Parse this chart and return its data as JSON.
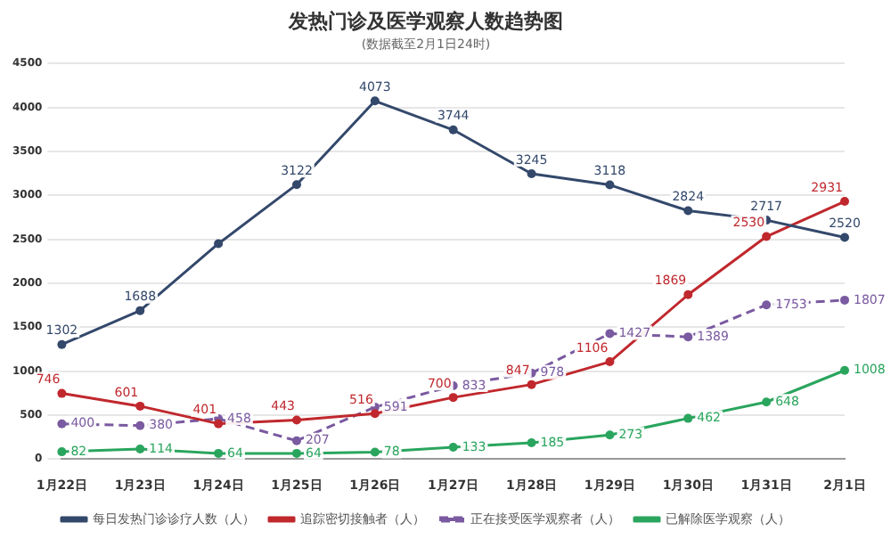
{
  "chart_data": {
    "type": "line",
    "title": "发热门诊及医学观察人数趋势图",
    "subtitle": "(数据截至2月1日24时)",
    "categories": [
      "1月22日",
      "1月23日",
      "1月24日",
      "1月25日",
      "1月26日",
      "1月27日",
      "1月28日",
      "1月29日",
      "1月30日",
      "1月31日",
      "2月1日"
    ],
    "series": [
      {
        "name": "每日发热门诊诊疗人数（人）",
        "color": "#33486b",
        "values": [
          1302,
          1688,
          2450,
          3122,
          4073,
          3744,
          3245,
          3118,
          2824,
          2717,
          2520
        ],
        "value_labels": [
          "1302",
          "1688",
          null,
          "3122",
          "4073",
          "3744",
          "3245",
          "3118",
          "2824",
          "2717",
          "2520"
        ]
      },
      {
        "name": "追踪密切接触者（人）",
        "color": "#c0282d",
        "values": [
          746,
          601,
          401,
          443,
          516,
          700,
          847,
          1106,
          1869,
          2530,
          2931
        ],
        "value_labels": [
          "746",
          "601",
          "401",
          "443",
          "516",
          "700",
          "847",
          "1106",
          "1869",
          "2530",
          "2931"
        ]
      },
      {
        "name": "正在接受医学观察者（人）",
        "color": "#7a5aa0",
        "line_style": "dashed",
        "values": [
          400,
          380,
          458,
          207,
          591,
          833,
          978,
          1427,
          1389,
          1753,
          1807
        ],
        "value_labels": [
          "400",
          "380",
          "458",
          "207",
          "591",
          "833",
          "978",
          "1427",
          "1389",
          "1753",
          "1807"
        ]
      },
      {
        "name": "已解除医学观察（人）",
        "color": "#2aa55e",
        "values": [
          82,
          114,
          64,
          64,
          78,
          133,
          185,
          273,
          462,
          648,
          1008
        ],
        "value_labels": [
          "82",
          "114",
          "64",
          "64",
          "78",
          "133",
          "185",
          "273",
          "462",
          "648",
          "1008"
        ]
      }
    ],
    "ylim": [
      0,
      4500
    ],
    "yticks": [
      0,
      500,
      1000,
      1500,
      2000,
      2500,
      3000,
      3500,
      4000,
      4500
    ],
    "grid": "y",
    "legend": "bottom",
    "marker": "circle",
    "line_style": "solid"
  }
}
